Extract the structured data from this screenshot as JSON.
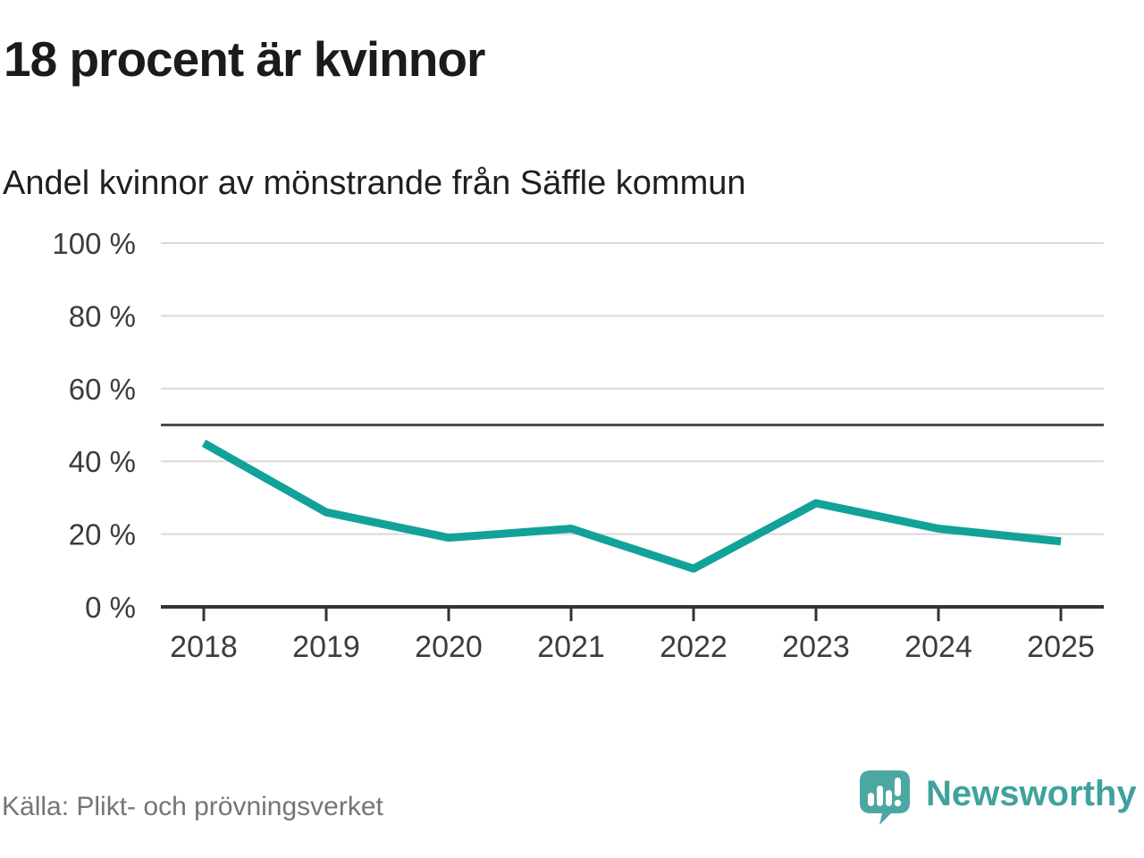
{
  "header": {
    "title": "18 procent är kvinnor",
    "subtitle": "Andel kvinnor av mönstrande från Säffle kommun"
  },
  "chart_data": {
    "type": "line",
    "title": "18 procent är kvinnor",
    "subtitle": "Andel kvinnor av mönstrande från Säffle kommun",
    "categories": [
      "2018",
      "2019",
      "2020",
      "2021",
      "2022",
      "2023",
      "2024",
      "2025"
    ],
    "series": [
      {
        "name": "Andel kvinnor av mönstrande",
        "values": [
          45,
          26,
          19,
          21.5,
          10.5,
          28.5,
          21.5,
          18
        ]
      }
    ],
    "ylim": [
      0,
      100
    ],
    "yticks": [
      0,
      20,
      40,
      60,
      80,
      100
    ],
    "ytick_suffix": " %",
    "reference_line": 50,
    "grid": true,
    "legend": false,
    "colors": {
      "line": "#12A29A",
      "gridline": "#d9d9d9",
      "reference_line": "#4d4d4d",
      "axis": "#333333",
      "tick_label": "#3c3c3c"
    }
  },
  "footer": {
    "source": "Källa: Plikt- och prövningsverket",
    "brand": "Newsworthy",
    "brand_color": "#3FA29C",
    "logo_badge_color": "#4BA7A1",
    "logo_glyph_color": "#ffffff"
  }
}
